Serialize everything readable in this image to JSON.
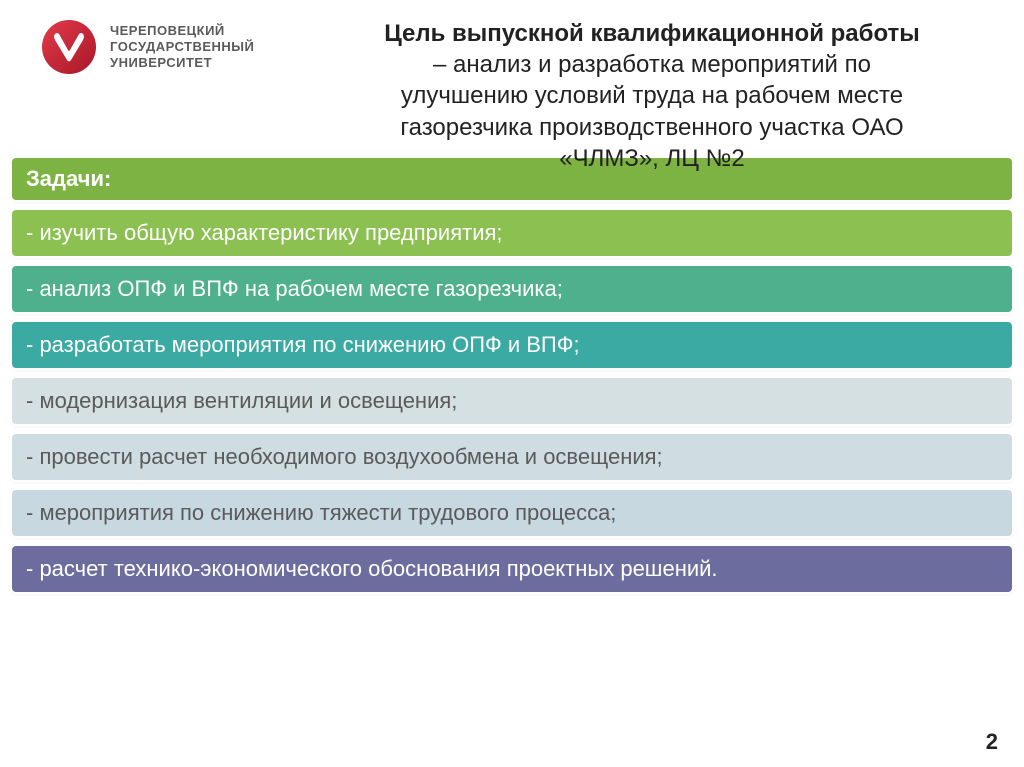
{
  "university": {
    "line1": "ЧЕРЕПОВЕЦКИЙ",
    "line2": "ГОСУДАРСТВЕННЫЙ",
    "line3": "УНИВЕРСИТЕТ",
    "logo_bg": "#c62035",
    "logo_letter": "Ч",
    "logo_letter_color": "#ffffff"
  },
  "title": {
    "bold": "Цель выпускной квалификационной работы",
    "regular_line1": "– анализ и разработка мероприятий по",
    "regular_line2": "улучшению условий труда на рабочем месте",
    "regular_line3": "газорезчика производственного участка ОАО",
    "regular_line4": "«ЧЛМЗ», ЛЦ №2",
    "bold_fontsize": 24,
    "regular_fontsize": 24,
    "color": "#222222"
  },
  "tasks": {
    "header": {
      "label": "Задачи:",
      "bg": "#7cb342",
      "text_color": "#ffffff"
    },
    "items": [
      {
        "label": "- изучить общую характеристику предприятия;",
        "bg": "#8cc152",
        "text_color": "#ffffff"
      },
      {
        "label": "- анализ ОПФ и ВПФ на рабочем месте газорезчика;",
        "bg": "#4fb08d",
        "text_color": "#ffffff"
      },
      {
        "label": "- разработать мероприятия по снижению ОПФ и ВПФ;",
        "bg": "#3aaaa3",
        "text_color": "#ffffff"
      },
      {
        "label": "- модернизация вентиляции и освещения;",
        "bg": "#d5e0e2",
        "text_color": "#5a5a5a"
      },
      {
        "label": "- провести расчет необходимого воздухообмена и освещения;",
        "bg": "#cfdde2",
        "text_color": "#5a5a5a"
      },
      {
        "label": "- мероприятия по снижению тяжести трудового процесса;",
        "bg": "#c8d8e0",
        "text_color": "#5a5a5a"
      },
      {
        "label": "- расчет технико-экономического обоснования  проектных решений.",
        "bg": "#6c6d9e",
        "text_color": "#ffffff"
      }
    ],
    "row_fontsize": 22,
    "row_radius": 6
  },
  "page_number": "2"
}
